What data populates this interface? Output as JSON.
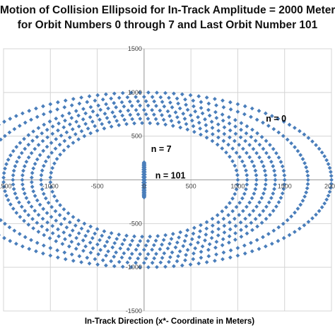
{
  "chart_data": {
    "type": "scatter",
    "title_lines": [
      "Motion of Collision Ellipsoid for In-Track Amplitude = 2000 Meters",
      "for Orbit Numbers 0 through 7 and Last Orbit Number 101"
    ],
    "xlabel": "In-Track Direction (x*- Coordinate in Meters)",
    "ylabel": "",
    "xlim": [
      -1500,
      2000
    ],
    "ylim": [
      -1500,
      1500
    ],
    "x_ticks": [
      -1500,
      -1000,
      -500,
      0,
      500,
      1000,
      1500,
      2000
    ],
    "y_ticks": [
      -1500,
      -1000,
      -500,
      500,
      1000,
      1500
    ],
    "x_tick_labels": [
      "-1500",
      "-1000",
      "-500",
      "0",
      "500",
      "1000",
      "1500",
      "2000"
    ],
    "y_tick_labels": [
      "-1500",
      "-1000",
      "-500",
      "500",
      "1000",
      "1500"
    ],
    "grid": true,
    "marker_color": "#4a7ebb",
    "marker": "diamond",
    "series": [
      {
        "orbit": 0,
        "x_semi_axis": 2000,
        "y_semi_axis": 1000
      },
      {
        "orbit": 1,
        "x_semi_axis": 1750,
        "y_semi_axis": 950
      },
      {
        "orbit": 2,
        "x_semi_axis": 1500,
        "y_semi_axis": 900
      },
      {
        "orbit": 3,
        "x_semi_axis": 1400,
        "y_semi_axis": 850
      },
      {
        "orbit": 4,
        "x_semi_axis": 1300,
        "y_semi_axis": 800
      },
      {
        "orbit": 5,
        "x_semi_axis": 1200,
        "y_semi_axis": 750
      },
      {
        "orbit": 6,
        "x_semi_axis": 1100,
        "y_semi_axis": 700
      },
      {
        "orbit": 7,
        "x_semi_axis": 1000,
        "y_semi_axis": 650
      },
      {
        "orbit": 101,
        "x_semi_axis": 8,
        "y_semi_axis": 200
      }
    ],
    "annotations": [
      {
        "text": "n = 0",
        "x": 1300,
        "y": 700
      },
      {
        "text": "n = 7",
        "x": 75,
        "y": 350
      },
      {
        "text": "n = 101",
        "x": 120,
        "y": 50
      }
    ]
  }
}
